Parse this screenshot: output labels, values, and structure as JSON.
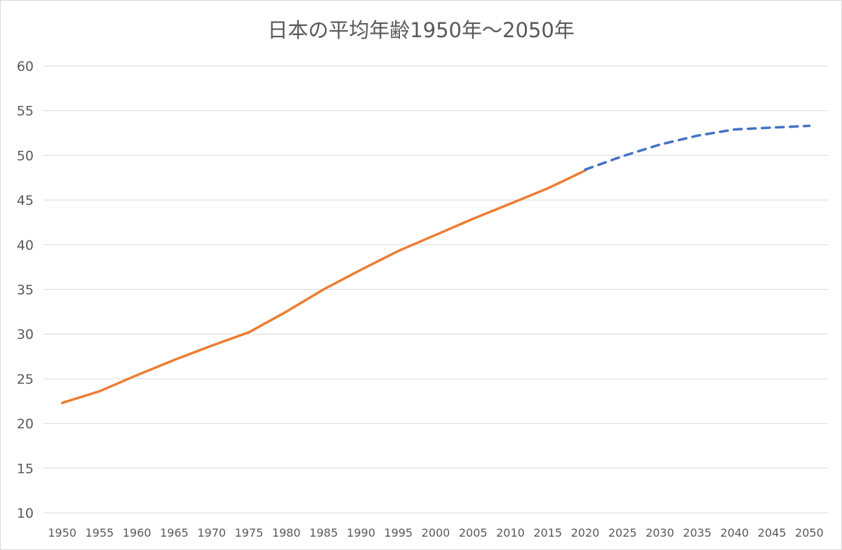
{
  "chart_data": {
    "type": "line",
    "title": "日本の平均年齢1950年～2050年",
    "xlabel": "",
    "ylabel": "",
    "categories": [
      "1950",
      "1955",
      "1960",
      "1965",
      "1970",
      "1975",
      "1980",
      "1985",
      "1990",
      "1995",
      "2000",
      "2005",
      "2010",
      "2015",
      "2020",
      "2025",
      "2030",
      "2035",
      "2040",
      "2045",
      "2050"
    ],
    "y_ticks": [
      "10",
      "15",
      "20",
      "25",
      "30",
      "35",
      "40",
      "45",
      "50",
      "55",
      "60"
    ],
    "ylim": [
      10,
      60
    ],
    "grid": "horizontal",
    "legend": "none",
    "series": [
      {
        "values": [
          22.3,
          23.6,
          25.4,
          27.1,
          28.7,
          30.2,
          32.5,
          35.0,
          37.2,
          39.3,
          41.1,
          42.9,
          44.6,
          46.3,
          48.3,
          null,
          null,
          null,
          null,
          null,
          null
        ],
        "color": "#ED7D31",
        "style": "solid"
      },
      {
        "values": [
          null,
          null,
          null,
          null,
          null,
          null,
          null,
          null,
          null,
          null,
          null,
          null,
          null,
          null,
          48.4,
          49.9,
          51.2,
          52.2,
          52.9,
          53.1,
          53.3
        ],
        "color": "#4472C4",
        "style": "dashed"
      }
    ]
  }
}
